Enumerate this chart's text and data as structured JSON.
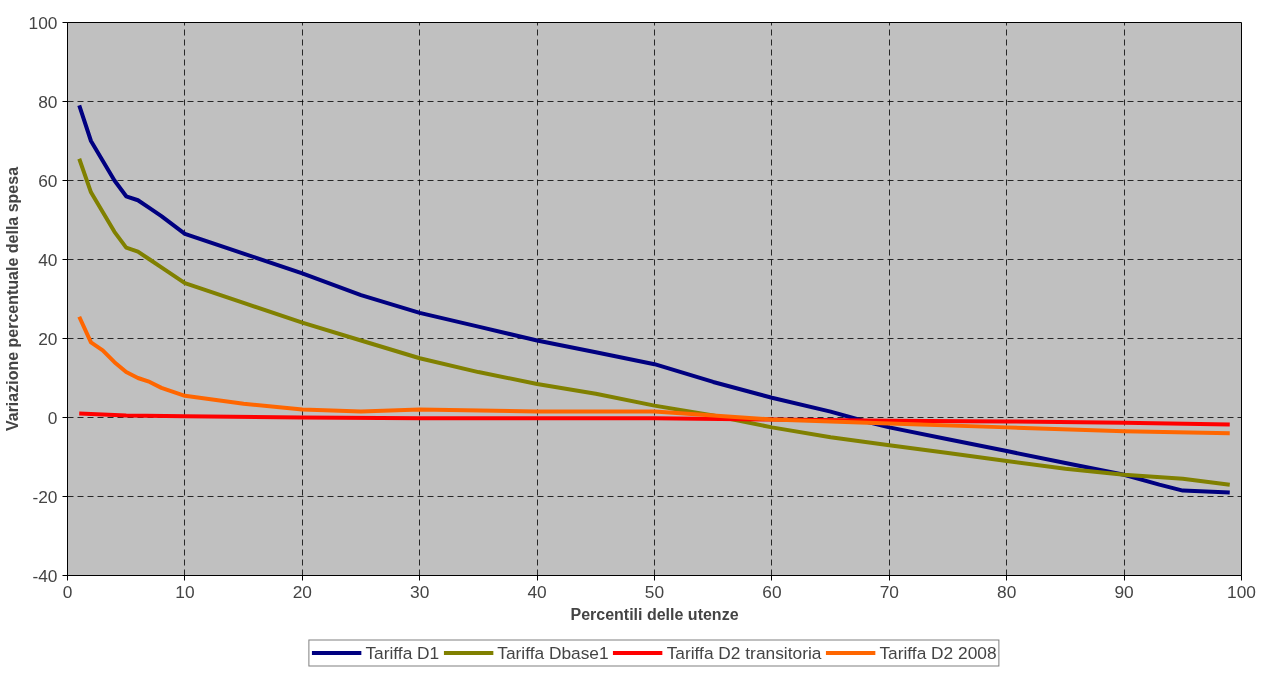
{
  "chart_data": {
    "type": "line",
    "xlabel": "Percentili delle utenze",
    "ylabel": "Variazione percentuale della spesa",
    "xlim": [
      0,
      100
    ],
    "ylim": [
      -40,
      100
    ],
    "xticks": [
      0,
      10,
      20,
      30,
      40,
      50,
      60,
      70,
      80,
      90,
      100
    ],
    "yticks": [
      -40,
      -20,
      0,
      20,
      40,
      60,
      80,
      100
    ],
    "grid": true,
    "legend": "bottom",
    "line_style": "solid",
    "marker": "none",
    "series": [
      {
        "name": "Tariffa D1",
        "color": "#000080",
        "x": [
          1,
          2,
          3,
          4,
          5,
          6,
          7,
          8,
          10,
          15,
          20,
          25,
          30,
          35,
          40,
          45,
          50,
          55,
          60,
          65,
          68,
          70,
          75,
          80,
          85,
          90,
          93,
          95,
          99
        ],
        "values": [
          79,
          70,
          65,
          60,
          56,
          55,
          53,
          51,
          46.5,
          41.5,
          36.5,
          31,
          26.5,
          23,
          19.5,
          16.5,
          13.5,
          9,
          5,
          1.5,
          -1,
          -2.5,
          -5.5,
          -8.5,
          -11.5,
          -14.5,
          -17,
          -18.5,
          -19
        ]
      },
      {
        "name": "Tariffa Dbase1",
        "color": "#808000",
        "x": [
          1,
          2,
          3,
          4,
          5,
          6,
          7,
          8,
          10,
          15,
          20,
          25,
          30,
          35,
          40,
          45,
          50,
          55,
          60,
          65,
          70,
          75,
          80,
          85,
          90,
          95,
          99
        ],
        "values": [
          65.5,
          57,
          52,
          47,
          43,
          42,
          40,
          38,
          34,
          29,
          24,
          19.5,
          15,
          11.5,
          8.5,
          6,
          3,
          0.5,
          -2.5,
          -5,
          -7,
          -9,
          -11,
          -13,
          -14.5,
          -15.5,
          -17
        ]
      },
      {
        "name": "Tariffa D2 transitoria",
        "color": "#ff0000",
        "x": [
          1,
          5,
          10,
          20,
          30,
          40,
          50,
          60,
          70,
          80,
          90,
          99
        ],
        "values": [
          1,
          0.5,
          0.3,
          0,
          -0.2,
          -0.2,
          -0.2,
          -0.5,
          -0.8,
          -1,
          -1.3,
          -1.8
        ]
      },
      {
        "name": "Tariffa D2 2008",
        "color": "#ff6600",
        "x": [
          1,
          2,
          3,
          4,
          5,
          6,
          7,
          8,
          10,
          15,
          20,
          25,
          30,
          40,
          50,
          55,
          60,
          70,
          80,
          90,
          99
        ],
        "values": [
          25.5,
          19,
          17,
          14,
          11.5,
          10,
          9,
          7.5,
          5.5,
          3.5,
          2,
          1.5,
          2,
          1.5,
          1.5,
          0.5,
          -0.5,
          -1.5,
          -2.5,
          -3.5,
          -4
        ]
      }
    ]
  }
}
